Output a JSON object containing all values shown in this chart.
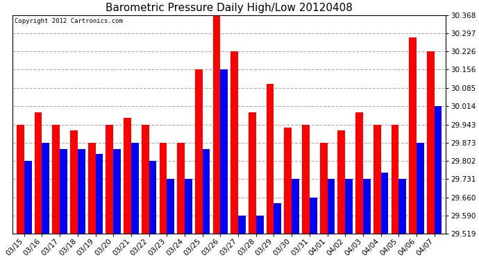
{
  "title": "Barometric Pressure Daily High/Low 20120408",
  "copyright": "Copyright 2012 Cartronics.com",
  "dates": [
    "03/15",
    "03/16",
    "03/17",
    "03/18",
    "03/19",
    "03/20",
    "03/21",
    "03/22",
    "03/23",
    "03/24",
    "03/25",
    "03/26",
    "03/27",
    "03/28",
    "03/29",
    "03/30",
    "03/31",
    "04/01",
    "04/02",
    "04/03",
    "04/04",
    "04/05",
    "04/06",
    "04/07"
  ],
  "highs": [
    29.943,
    29.99,
    29.943,
    29.92,
    29.873,
    29.943,
    29.97,
    29.943,
    29.873,
    29.873,
    30.156,
    30.368,
    30.226,
    29.99,
    30.1,
    29.93,
    29.943,
    29.873,
    29.92,
    29.99,
    29.943,
    29.943,
    30.28,
    30.226
  ],
  "lows": [
    29.802,
    29.873,
    29.848,
    29.848,
    29.83,
    29.848,
    29.873,
    29.802,
    29.731,
    29.731,
    29.848,
    30.156,
    29.59,
    29.59,
    29.638,
    29.731,
    29.66,
    29.731,
    29.731,
    29.731,
    29.756,
    29.731,
    29.873,
    30.014
  ],
  "ylim_min": 29.519,
  "ylim_max": 30.368,
  "yticks": [
    29.519,
    29.59,
    29.66,
    29.731,
    29.802,
    29.873,
    29.943,
    30.014,
    30.085,
    30.156,
    30.226,
    30.297,
    30.368
  ],
  "high_color": "#ff0000",
  "low_color": "#0000ff",
  "bg_color": "#ffffff",
  "grid_color": "#aaaaaa",
  "title_fontsize": 11,
  "tick_fontsize": 7.5,
  "copyright_fontsize": 6.5,
  "bar_width": 0.42
}
